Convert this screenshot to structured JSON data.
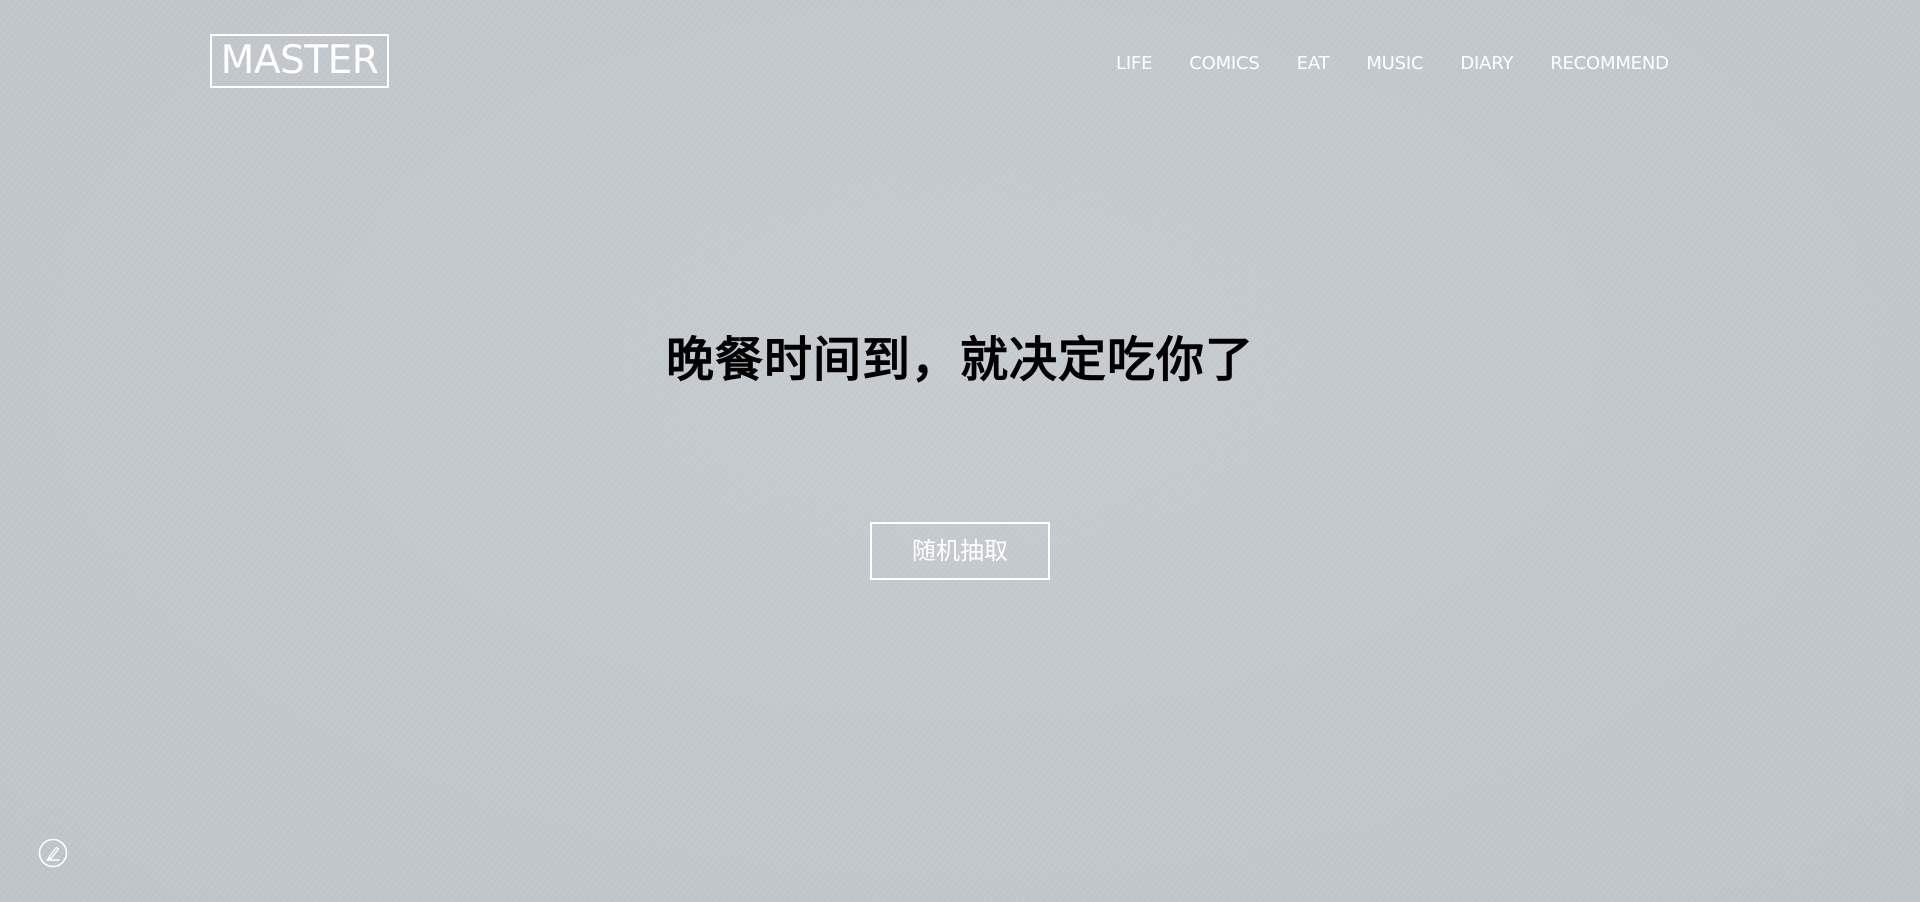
{
  "header": {
    "logo_text": "MASTER",
    "nav": [
      {
        "label": "LIFE"
      },
      {
        "label": "COMICS"
      },
      {
        "label": "EAT"
      },
      {
        "label": "MUSIC"
      },
      {
        "label": "DIARY"
      },
      {
        "label": "RECOMMEND"
      }
    ]
  },
  "hero": {
    "headline": "晚餐时间到，就决定吃你了",
    "button_label": "随机抽取"
  },
  "footer": {
    "edit_icon": "pencil-circle-icon"
  },
  "colors": {
    "background": "#c2c8cc",
    "foreground_light": "#ffffff",
    "headline": "#000000"
  }
}
